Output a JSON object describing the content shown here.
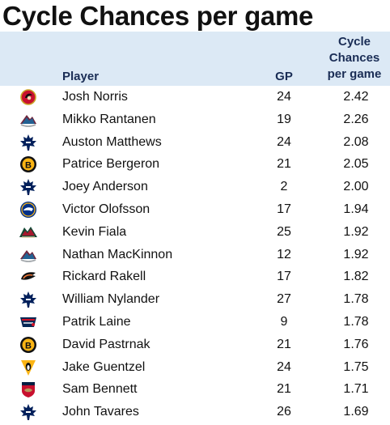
{
  "title": "Cycle Chances per game",
  "columns": {
    "player": "Player",
    "gp": "GP",
    "cc_line1": "Cycle",
    "cc_line2": "Chances",
    "cc_line3": "per game"
  },
  "chart_data": {
    "type": "table",
    "title": "Cycle Chances per game",
    "columns": [
      "Player",
      "GP",
      "Cycle Chances per game"
    ],
    "rows": [
      {
        "team_icon": "ottawa-senators-logo",
        "player": "Josh Norris",
        "gp": "24",
        "cc": "2.42"
      },
      {
        "team_icon": "colorado-avalanche-logo",
        "player": "Mikko Rantanen",
        "gp": "19",
        "cc": "2.26"
      },
      {
        "team_icon": "toronto-maple-leafs-logo",
        "player": "Auston Matthews",
        "gp": "24",
        "cc": "2.08"
      },
      {
        "team_icon": "boston-bruins-logo",
        "player": "Patrice Bergeron",
        "gp": "21",
        "cc": "2.05"
      },
      {
        "team_icon": "toronto-maple-leafs-logo",
        "player": "Joey Anderson",
        "gp": "2",
        "cc": "2.00"
      },
      {
        "team_icon": "buffalo-sabres-logo",
        "player": "Victor Olofsson",
        "gp": "17",
        "cc": "1.94"
      },
      {
        "team_icon": "minnesota-wild-logo",
        "player": "Kevin Fiala",
        "gp": "25",
        "cc": "1.92"
      },
      {
        "team_icon": "colorado-avalanche-logo",
        "player": "Nathan MacKinnon",
        "gp": "12",
        "cc": "1.92"
      },
      {
        "team_icon": "anaheim-ducks-logo",
        "player": "Rickard Rakell",
        "gp": "17",
        "cc": "1.82"
      },
      {
        "team_icon": "toronto-maple-leafs-logo",
        "player": "William Nylander",
        "gp": "27",
        "cc": "1.78"
      },
      {
        "team_icon": "columbus-blue-jackets-logo",
        "player": "Patrik Laine",
        "gp": "9",
        "cc": "1.78"
      },
      {
        "team_icon": "boston-bruins-logo",
        "player": "David Pastrnak",
        "gp": "21",
        "cc": "1.76"
      },
      {
        "team_icon": "pittsburgh-penguins-logo",
        "player": "Jake Guentzel",
        "gp": "24",
        "cc": "1.75"
      },
      {
        "team_icon": "florida-panthers-logo",
        "player": "Sam Bennett",
        "gp": "21",
        "cc": "1.71"
      },
      {
        "team_icon": "toronto-maple-leafs-logo",
        "player": "John Tavares",
        "gp": "26",
        "cc": "1.69"
      }
    ]
  }
}
